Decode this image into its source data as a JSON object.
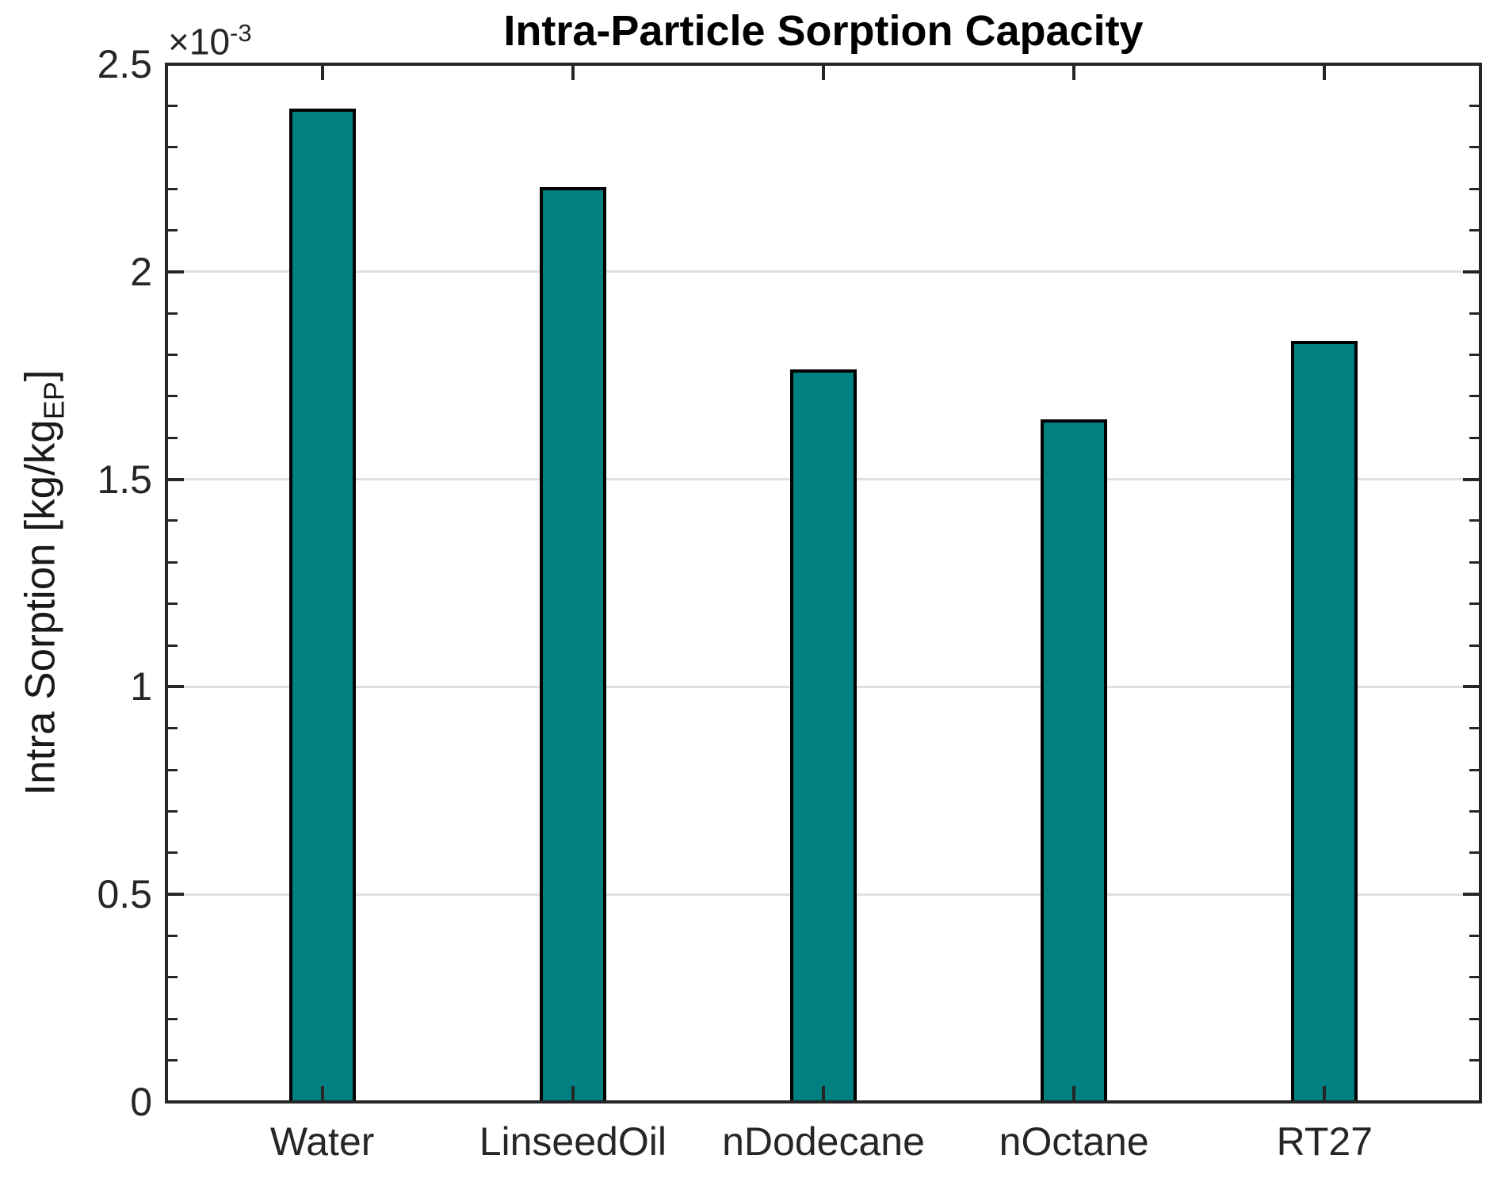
{
  "chart_data": {
    "type": "bar",
    "title": "Intra-Particle Sorption Capacity",
    "categories": [
      "Water",
      "LinseedOil",
      "nDodecane",
      "nOctane",
      "RT27"
    ],
    "values": [
      0.00239,
      0.0022,
      0.00176,
      0.00164,
      0.00183
    ],
    "xlabel": "",
    "ylabel_full": "Intra Sorption [kg/kg_EP]",
    "ylabel_main": "Intra Sorption [kg/kg",
    "ylabel_subscript": "EP",
    "ylabel_close": "]",
    "exponent": {
      "base": "×10",
      "power": "-3"
    },
    "ylim": [
      0,
      0.0025
    ],
    "y_major_ticks": [
      0,
      0.0005,
      0.001,
      0.0015,
      0.002,
      0.0025
    ],
    "y_tick_labels": [
      "0",
      "0.5",
      "1",
      "1.5",
      "2",
      "2.5"
    ],
    "y_minor_tick_step": 0.0001,
    "xlim_units": [
      0.378,
      5.622
    ],
    "grid": "y-major-on",
    "legend": "none",
    "bar_color": "#008080",
    "bar_edge_color": "#000000",
    "axis_color": "#262626",
    "grid_color": "#e0e0e0",
    "title_color": "#000000"
  }
}
